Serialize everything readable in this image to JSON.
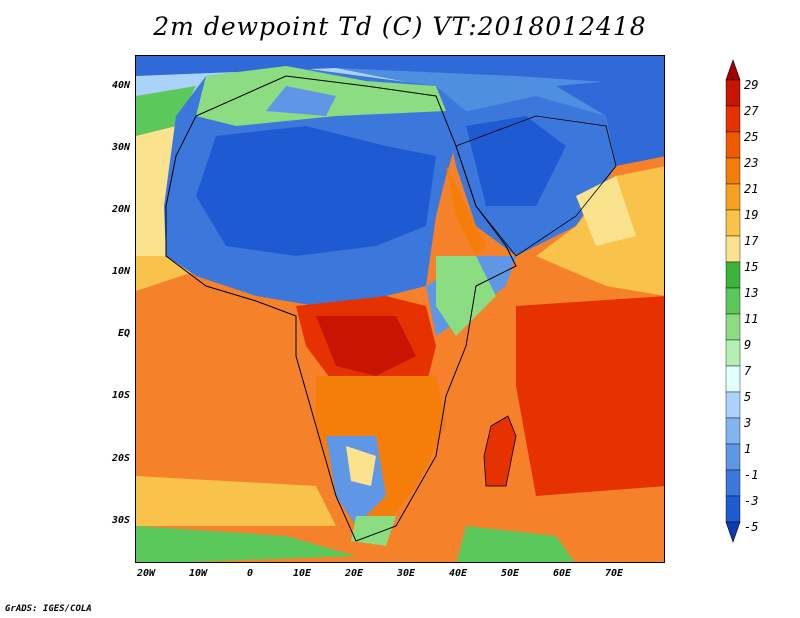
{
  "title": "2m dewpoint Td (C) VT:2018012418",
  "footer": "GrADS: IGES/COLA",
  "map": {
    "lat_labels": [
      "40N",
      "30N",
      "20N",
      "10N",
      "EQ",
      "10S",
      "20S",
      "30S"
    ],
    "lon_labels": [
      "20W",
      "10W",
      "0",
      "10E",
      "20E",
      "30E",
      "40E",
      "50E",
      "60E",
      "70E"
    ]
  },
  "colorbar": {
    "labels": [
      "29",
      "27",
      "25",
      "23",
      "21",
      "19",
      "17",
      "15",
      "13",
      "11",
      "9",
      "7",
      "5",
      "3",
      "1",
      "-1",
      "-3",
      "-5"
    ],
    "colors": [
      "#a50000",
      "#c81400",
      "#e63200",
      "#f05a00",
      "#f57d0a",
      "#f7a020",
      "#f9c24a",
      "#fbe28c",
      "#3cb43c",
      "#5ac85a",
      "#8cdc82",
      "#b4f0b4",
      "#e1ffff",
      "#aad2fa",
      "#82b4f0",
      "#5f96e6",
      "#3c78dc",
      "#1e5ad2",
      "#0a3cb4"
    ]
  }
}
